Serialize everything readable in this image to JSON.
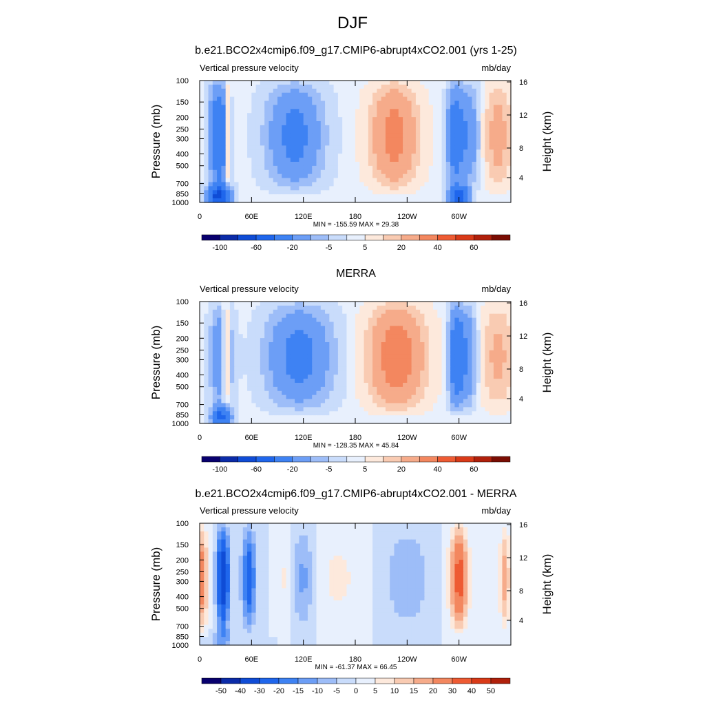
{
  "figure_title": "DJF",
  "chart_data": [
    {
      "type": "heatmap",
      "title": "b.e21.BCO2x4cmip6.f09_g17.CMIP6-abrupt4xCO2.001 (yrs 1-25)",
      "variable": "Vertical pressure velocity",
      "units": "mb/day",
      "ylabel": "Pressure (mb)",
      "ylabel_right": "Height (km)",
      "x_ticks": [
        "0",
        "60E",
        "120E",
        "180",
        "120W",
        "60W"
      ],
      "x_range": [
        0,
        360
      ],
      "y_ticks": [
        100,
        150,
        200,
        250,
        300,
        400,
        500,
        700,
        850,
        1000
      ],
      "y_range": [
        100,
        1000
      ],
      "y_scale": "log",
      "y_right_ticks": [
        4,
        8,
        12,
        16
      ],
      "stats": "MIN = -155.59  MAX =  29.38",
      "levels": [
        -100,
        -80,
        -60,
        -40,
        -20,
        -10,
        -5,
        -1,
        1,
        5,
        10,
        20,
        30,
        40,
        50,
        60
      ],
      "colorbar_labels": [
        "-100",
        "-60",
        "-20",
        "-5",
        "5",
        "20",
        "40",
        "60"
      ],
      "min": -155.59,
      "max": 29.38
    },
    {
      "type": "heatmap",
      "title": "MERRA",
      "variable": "Vertical pressure velocity",
      "units": "mb/day",
      "ylabel": "Pressure (mb)",
      "ylabel_right": "Height (km)",
      "x_ticks": [
        "0",
        "60E",
        "120E",
        "180",
        "120W",
        "60W"
      ],
      "x_range": [
        0,
        360
      ],
      "y_ticks": [
        100,
        150,
        200,
        250,
        300,
        400,
        500,
        700,
        850,
        1000
      ],
      "y_range": [
        100,
        1000
      ],
      "y_scale": "log",
      "y_right_ticks": [
        4,
        8,
        12,
        16
      ],
      "stats": "MIN = -128.35  MAX =  45.84",
      "levels": [
        -100,
        -80,
        -60,
        -40,
        -20,
        -10,
        -5,
        -1,
        1,
        5,
        10,
        20,
        30,
        40,
        50,
        60
      ],
      "colorbar_labels": [
        "-100",
        "-60",
        "-20",
        "-5",
        "5",
        "20",
        "40",
        "60"
      ],
      "min": -128.35,
      "max": 45.84
    },
    {
      "type": "heatmap",
      "title": "b.e21.BCO2x4cmip6.f09_g17.CMIP6-abrupt4xCO2.001 - MERRA",
      "variable": "Vertical pressure velocity",
      "units": "mb/day",
      "ylabel": "Pressure (mb)",
      "ylabel_right": "Height (km)",
      "x_ticks": [
        "0",
        "60E",
        "120E",
        "180",
        "120W",
        "60W"
      ],
      "x_range": [
        0,
        360
      ],
      "y_ticks": [
        100,
        150,
        200,
        250,
        300,
        400,
        500,
        700,
        850,
        1000
      ],
      "y_range": [
        100,
        1000
      ],
      "y_scale": "log",
      "y_right_ticks": [
        4,
        8,
        12,
        16
      ],
      "stats": "MIN = -61.37  MAX =  66.45",
      "levels": [
        -50,
        -40,
        -30,
        -20,
        -15,
        -10,
        -5,
        0,
        5,
        10,
        15,
        20,
        30,
        40,
        50
      ],
      "colorbar_labels": [
        "-50",
        "-40",
        "-30",
        "-20",
        "-15",
        "-10",
        "-5",
        "0",
        "5",
        "10",
        "15",
        "20",
        "30",
        "40",
        "50"
      ],
      "min": -61.37,
      "max": 66.45
    }
  ],
  "palette": [
    "#08006e",
    "#0b2ba8",
    "#0f4cd6",
    "#1f66ec",
    "#3e82f3",
    "#6c9ef6",
    "#9dbdf8",
    "#c9dcfb",
    "#e8f0fd",
    "#fde9dc",
    "#f9cbb2",
    "#f6ab8a",
    "#f3875f",
    "#ee5b33",
    "#d93a18",
    "#b0200b",
    "#7a0d03"
  ]
}
